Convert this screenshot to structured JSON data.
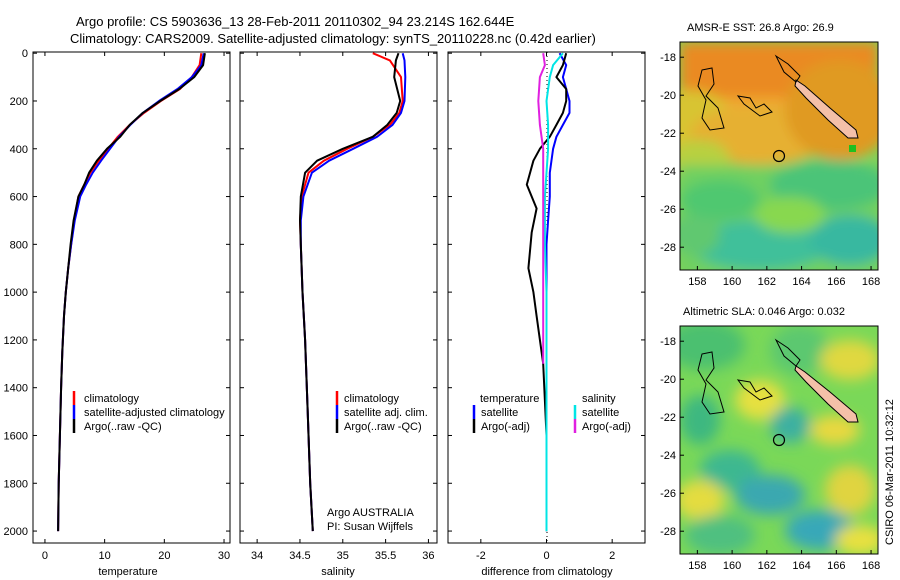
{
  "header": {
    "title_line1": "Argo profile: CS 5903636_13 28-Feb-2011 20110302_94 23.214S 162.644E",
    "title_line2": "Climatology: CARS2009. Satellite-adjusted climatology: synTS_20110228.nc (0.42d earlier)"
  },
  "colors": {
    "climatology": "#ff0000",
    "satellite": "#0000ff",
    "argo": "#000000",
    "salinity_satellite": "#00e5e5",
    "salinity_argo": "#e020e0"
  },
  "chart_data": [
    {
      "type": "line",
      "xlabel": "temperature",
      "xlim": [
        -2,
        31
      ],
      "xticks": [
        "0",
        "10",
        "20",
        "30"
      ],
      "ylim": [
        2050,
        -5
      ],
      "yticks": [
        "0",
        "200",
        "400",
        "600",
        "800",
        "1000",
        "1200",
        "1400",
        "1600",
        "1800",
        "2000"
      ],
      "y_reversed": true,
      "legend": [
        "climatology",
        "satellite-adjusted climatology",
        "Argo(..raw -QC)"
      ],
      "legend_placement": "lower-right",
      "series": [
        {
          "name": "climatology",
          "color": "#ff0000",
          "x": [
            26.2,
            25.9,
            24.6,
            22.6,
            19.4,
            16.6,
            14.2,
            12.2,
            10.6,
            9.0,
            7.6,
            6.6,
            5.6,
            4.9,
            4.4,
            3.9,
            3.5,
            3.2,
            2.9,
            2.7,
            2.5,
            2.3,
            2.2
          ],
          "y": [
            0,
            50,
            100,
            150,
            200,
            250,
            300,
            350,
            400,
            450,
            500,
            550,
            600,
            700,
            800,
            900,
            1000,
            1100,
            1250,
            1400,
            1600,
            1800,
            2000
          ]
        },
        {
          "name": "satellite-adjusted climatology",
          "color": "#0000ff",
          "x": [
            26.6,
            26.2,
            24.6,
            22.2,
            19.1,
            16.4,
            14.3,
            12.4,
            10.9,
            9.4,
            8.0,
            6.9,
            5.9,
            5.0,
            4.4,
            3.9,
            3.5,
            3.2,
            2.9,
            2.7,
            2.5,
            2.3,
            2.2
          ],
          "y": [
            0,
            50,
            100,
            150,
            200,
            250,
            300,
            350,
            400,
            450,
            500,
            550,
            600,
            700,
            800,
            900,
            1000,
            1100,
            1250,
            1400,
            1600,
            1800,
            2000
          ]
        },
        {
          "name": "Argo(..raw -QC)",
          "color": "#000000",
          "x": [
            26.8,
            26.5,
            25.0,
            22.5,
            19.3,
            16.4,
            14.2,
            12.6,
            10.4,
            8.7,
            7.4,
            6.6,
            5.6,
            4.8,
            4.3,
            3.9,
            3.5,
            3.2,
            2.9,
            2.7,
            2.5,
            2.3,
            2.2
          ],
          "y": [
            0,
            50,
            100,
            150,
            200,
            250,
            300,
            350,
            400,
            450,
            500,
            550,
            600,
            700,
            800,
            900,
            1000,
            1100,
            1250,
            1400,
            1600,
            1800,
            2000
          ]
        }
      ]
    },
    {
      "type": "line",
      "xlabel": "salinity",
      "xlim": [
        33.8,
        36.1
      ],
      "xticks": [
        "34",
        "34.5",
        "35",
        "35.5",
        "36"
      ],
      "ylim": [
        2050,
        -5
      ],
      "y_reversed": true,
      "legend": [
        "climatology",
        "satellite adj. clim.",
        "Argo(..raw -QC)"
      ],
      "legend_placement": "lower-right",
      "annotation": [
        "Argo AUSTRALIA",
        "PI: Susan Wijffels"
      ],
      "series": [
        {
          "name": "climatology",
          "color": "#ff0000",
          "x": [
            35.35,
            35.55,
            35.68,
            35.7,
            35.66,
            35.55,
            35.35,
            35.05,
            34.78,
            34.6,
            34.52,
            34.5,
            34.51,
            34.53,
            34.56,
            34.59,
            34.62,
            34.65
          ],
          "y": [
            0,
            30,
            100,
            200,
            250,
            300,
            350,
            400,
            450,
            500,
            600,
            700,
            800,
            1000,
            1200,
            1500,
            1800,
            2000
          ]
        },
        {
          "name": "satellite adj. clim.",
          "color": "#0000ff",
          "x": [
            35.7,
            35.72,
            35.73,
            35.72,
            35.68,
            35.58,
            35.4,
            35.12,
            34.84,
            34.64,
            34.54,
            34.51,
            34.51,
            34.53,
            34.56,
            34.59,
            34.62,
            34.65
          ],
          "y": [
            0,
            30,
            100,
            200,
            250,
            300,
            350,
            400,
            450,
            500,
            600,
            700,
            800,
            1000,
            1200,
            1500,
            1800,
            2000
          ]
        },
        {
          "name": "Argo(..raw -QC)",
          "color": "#000000",
          "x": [
            35.65,
            35.62,
            35.6,
            35.67,
            35.63,
            35.52,
            35.35,
            35.0,
            34.7,
            34.56,
            34.51,
            34.5,
            34.51,
            34.53,
            34.56,
            34.59,
            34.62,
            34.65
          ],
          "y": [
            0,
            30,
            100,
            200,
            250,
            300,
            350,
            400,
            450,
            500,
            600,
            700,
            800,
            1000,
            1200,
            1500,
            1800,
            2000
          ]
        }
      ]
    },
    {
      "type": "line",
      "xlabel": "difference from climatology",
      "xlim": [
        -3.0,
        3.0
      ],
      "xticks": [
        "-2",
        "0",
        "2"
      ],
      "ylim": [
        2050,
        -5
      ],
      "y_reversed": true,
      "legend_columns": [
        {
          "heading": "temperature",
          "entries": [
            "satellite",
            "Argo(-adj)"
          ]
        },
        {
          "heading": "salinity",
          "entries": [
            "satellite",
            "Argo(-adj)"
          ]
        }
      ],
      "legend_placement": "lower-center",
      "series": [
        {
          "name": "temperature satellite",
          "color": "#0000ff",
          "x": [
            0.4,
            0.6,
            0.5,
            0.6,
            0.7,
            0.7,
            0.5,
            0.3,
            0.2,
            0.1,
            0.1,
            0.05,
            0.0,
            0.0,
            0.0,
            0.0,
            0.0,
            0.0,
            0.0
          ],
          "y": [
            0,
            50,
            100,
            150,
            200,
            250,
            300,
            350,
            400,
            500,
            600,
            700,
            800,
            1000,
            1200,
            1400,
            1600,
            1800,
            2000
          ]
        },
        {
          "name": "temperature Argo(-adj)",
          "color": "#000000",
          "x": [
            0.6,
            0.5,
            0.3,
            0.6,
            0.6,
            0.5,
            0.3,
            0.1,
            -0.2,
            -0.4,
            -0.6,
            -0.3,
            -0.45,
            -0.55,
            -0.4,
            -0.3,
            -0.2,
            -0.1,
            0.0,
            0.0
          ],
          "y": [
            0,
            50,
            100,
            150,
            200,
            250,
            300,
            350,
            400,
            450,
            550,
            650,
            750,
            900,
            1000,
            1100,
            1200,
            1300,
            1600,
            2000
          ]
        },
        {
          "name": "salinity satellite",
          "color": "#00e5e5",
          "x": [
            0.5,
            0.2,
            0.1,
            0.0,
            0.05,
            0.05,
            0.0,
            -0.05,
            -0.05,
            0.0,
            0.0,
            0.0,
            0.0
          ],
          "y": [
            0,
            50,
            100,
            200,
            300,
            400,
            500,
            600,
            800,
            1000,
            1400,
            1800,
            2000
          ]
        },
        {
          "name": "salinity Argo(-adj)",
          "color": "#e020e0",
          "x": [
            -0.1,
            -0.05,
            -0.2,
            -0.25,
            -0.2,
            -0.1,
            -0.1,
            -0.1,
            -0.1,
            -0.1
          ],
          "y": [
            0,
            50,
            100,
            200,
            300,
            400,
            500,
            600,
            700,
            1300
          ]
        }
      ]
    }
  ],
  "maps": [
    {
      "title": "AMSR-E SST: 26.8 Argo: 26.9",
      "kind": "sst",
      "xticks": [
        "158",
        "160",
        "162",
        "164",
        "166",
        "168"
      ],
      "yticks": [
        "-18",
        "-20",
        "-22",
        "-24",
        "-26",
        "-28"
      ],
      "xlim": [
        157.0,
        168.4
      ],
      "ylim": [
        -29.2,
        -17.2
      ],
      "argo_position": [
        162.644,
        -23.214
      ]
    },
    {
      "title": "Altimetric SLA: 0.046 Argo: 0.032",
      "kind": "sla",
      "xticks": [
        "158",
        "160",
        "162",
        "164",
        "166",
        "168"
      ],
      "yticks": [
        "-18",
        "-20",
        "-22",
        "-24",
        "-26",
        "-28"
      ],
      "xlim": [
        157.0,
        168.4
      ],
      "ylim": [
        -29.2,
        -17.2
      ],
      "argo_position": [
        162.644,
        -23.214
      ]
    }
  ],
  "footer": {
    "side_label": "CSIRO 06-Mar-2011 10:32:12"
  }
}
